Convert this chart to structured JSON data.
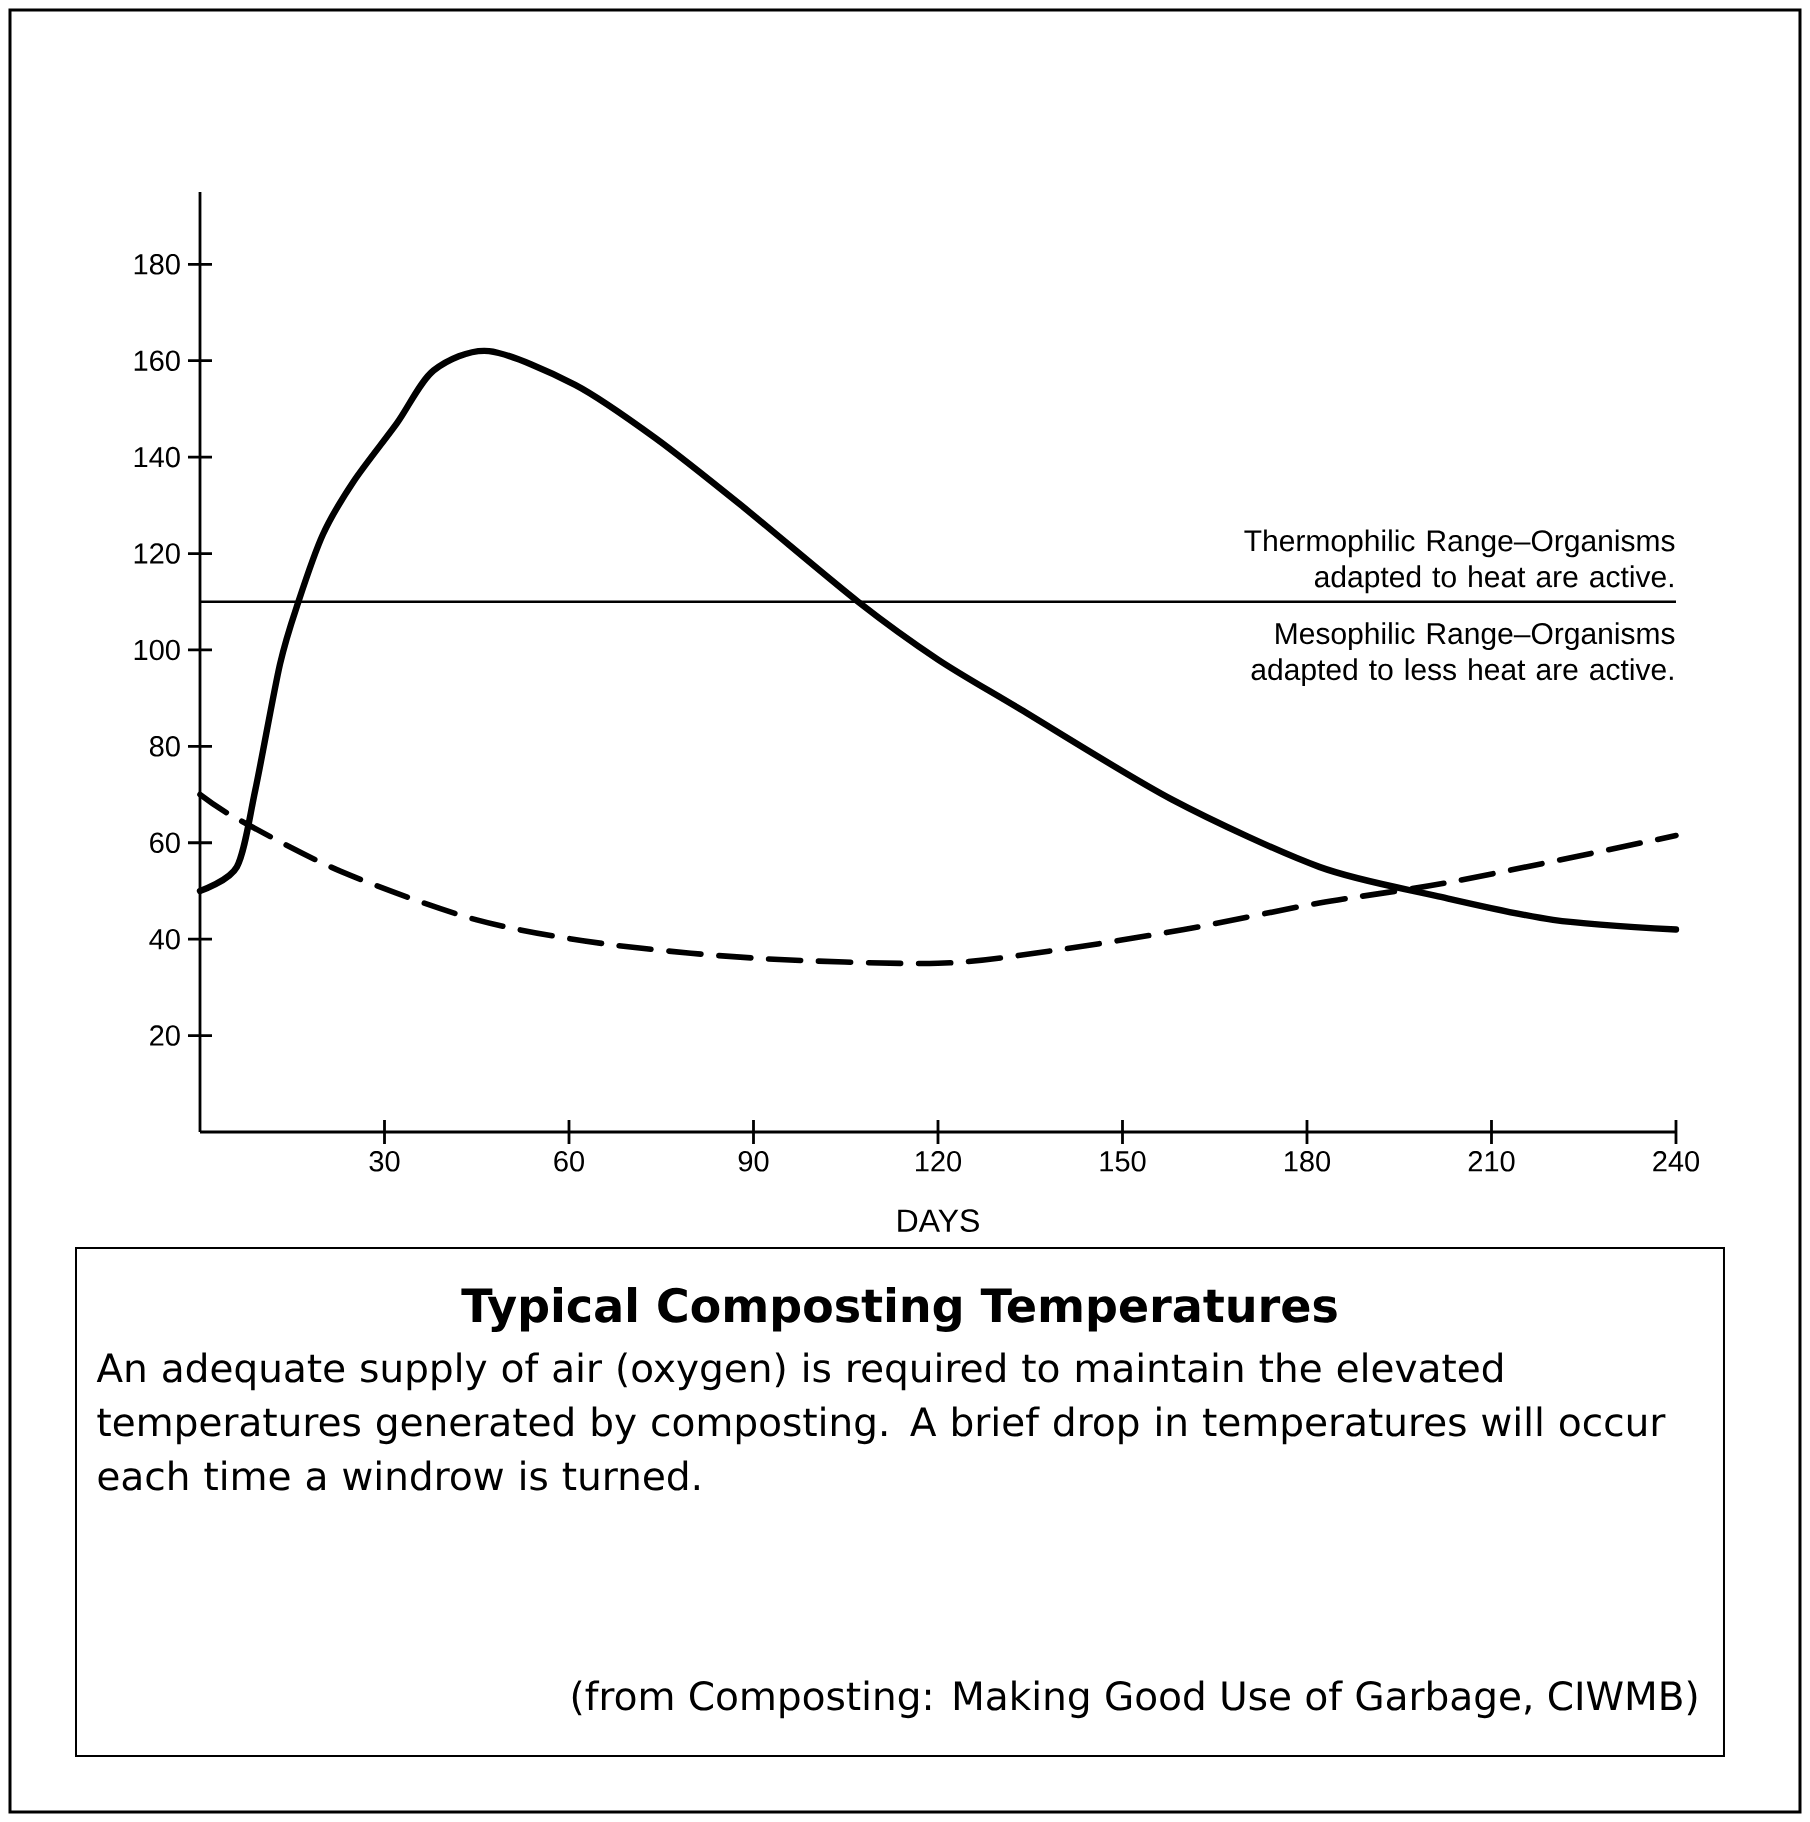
{
  "chart_data": {
    "type": "line",
    "title": "Typical Composting Temperatures",
    "xlabel": "DAYS",
    "xlim": [
      0,
      240
    ],
    "ylim": [
      0,
      195
    ],
    "xticks": [
      30,
      60,
      90,
      120,
      150,
      180,
      210,
      240
    ],
    "yticks": [
      20,
      40,
      60,
      80,
      100,
      120,
      140,
      160,
      180
    ],
    "grid": false,
    "ref_lines": [
      {
        "axis": "y",
        "value": 110,
        "color": "#000000"
      }
    ],
    "annotations": [
      "Thermophilic Range–Organisms adapted to heat are active.",
      "Mesophilic Range–Organisms adapted to less heat are active.",
      "An adequate supply of air (oxygen) is required to maintain the elevated temperatures generated by composting.  A brief drop in temperatures will occur each time a windrow is turned.",
      "(from Composting: Making Good Use of Garbage, CIWMB)"
    ],
    "series": [
      {
        "color": "#000000",
        "line_style": "solid",
        "x": [
          0,
          6,
          9,
          13,
          16,
          20,
          25,
          32,
          38,
          47,
          61,
          74,
          88,
          107,
          120,
          133,
          158,
          182,
          201,
          220,
          240
        ],
        "values": [
          50,
          55,
          71,
          97,
          110,
          124,
          135,
          147,
          158,
          162,
          155,
          144,
          130,
          110,
          98,
          88,
          69,
          55,
          49,
          44,
          42
        ]
      },
      {
        "color": "#000000",
        "line_style": "dashed",
        "x": [
          0,
          6,
          23,
          45,
          66,
          91,
          120,
          138,
          160,
          182,
          204,
          240
        ],
        "values": [
          70,
          65,
          54,
          44,
          39,
          36,
          35,
          37.5,
          42,
          47.5,
          52,
          61.5
        ]
      }
    ]
  }
}
